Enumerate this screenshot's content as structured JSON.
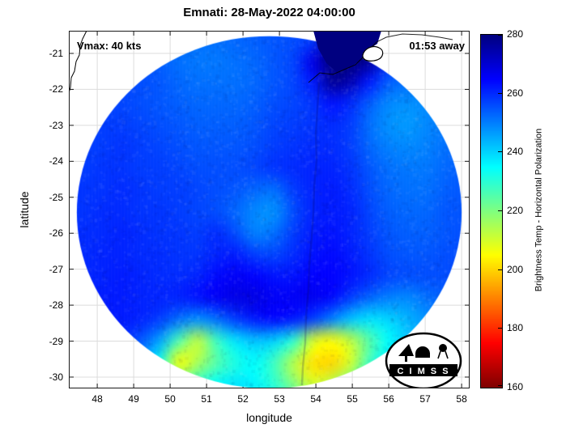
{
  "figure": {
    "title": "Emnati: 28-May-2022 04:00:00",
    "annotations": {
      "vmax": "Vmax: 40 kts",
      "eta": "01:53 away"
    },
    "xlabel": "longitude",
    "ylabel": "latitude",
    "logo_text": "C I M S S"
  },
  "chart_data": {
    "type": "heatmap",
    "title": "Emnati: 28-May-2022 04:00:00",
    "xlabel": "longitude",
    "ylabel": "latitude",
    "x_ticks": [
      48,
      49,
      50,
      51,
      52,
      53,
      54,
      55,
      56,
      57,
      58
    ],
    "y_ticks": [
      -21,
      -22,
      -23,
      -24,
      -25,
      -26,
      -27,
      -28,
      -29,
      -30
    ],
    "xlim": [
      47.22,
      58.22
    ],
    "ylim": [
      -30.32,
      -20.37
    ],
    "grid_on": true,
    "colorbar": {
      "label": "Brightness Temp - Horizontal Polarization",
      "ticks": [
        160,
        180,
        200,
        220,
        240,
        260,
        280
      ],
      "range": [
        160,
        280
      ],
      "colormap": "jet reversed: 160 K = dark red, 200 K = yellow, 220 K = green, 240 K = cyan, 260 K = blue, 280 K = dark navy"
    },
    "swath": {
      "center_lon": 52.72,
      "center_lat": -25.42,
      "radius_lon_deg": 5.28,
      "radius_lat_deg": 4.9
    },
    "features": [
      {
        "name": "no-data-wedge",
        "desc": "dark navy wedge (~278-280 K) at top right, lon 54-56.5, lat -20.5 to -22.5, from adjacent swath edge"
      },
      {
        "name": "convective-band",
        "desc": "warm cyan-green-yellow arc along the south edge, lat -28.5 to -30.5, minima ~200 K near lon 50.5 and lon 54-55"
      },
      {
        "name": "center-light-spot",
        "desc": "lighter blue spot near storm center, lon ~52.4, lat ~-25.5, ~248 K"
      },
      {
        "name": "coastline",
        "desc": "Madagascar east coast visible at upper left; small island outline (Reunion) near lon 55.4, lat -21"
      }
    ],
    "grid": {
      "lon_start": 47.6,
      "lon_step": 0.525,
      "lat_start": -20.6,
      "lat_step": -0.6,
      "units": "K",
      "values": [
        [
          254,
          255,
          256,
          255,
          254,
          253,
          252,
          252,
          253,
          254,
          255,
          256,
          258,
          276,
          279,
          278,
          262,
          256,
          255,
          254,
          254
        ],
        [
          255,
          256,
          256,
          255,
          254,
          252,
          251,
          251,
          252,
          253,
          255,
          257,
          268,
          279,
          280,
          277,
          260,
          255,
          254,
          253,
          253
        ],
        [
          256,
          256,
          257,
          256,
          255,
          253,
          252,
          252,
          252,
          253,
          255,
          257,
          262,
          277,
          274,
          262,
          254,
          252,
          251,
          252,
          252
        ],
        [
          257,
          257,
          257,
          256,
          255,
          254,
          253,
          253,
          253,
          254,
          256,
          257,
          259,
          263,
          260,
          254,
          249,
          248,
          249,
          251,
          252
        ],
        [
          257,
          258,
          258,
          257,
          256,
          255,
          254,
          254,
          254,
          255,
          257,
          258,
          259,
          260,
          258,
          252,
          248,
          247,
          249,
          251,
          252
        ],
        [
          258,
          258,
          259,
          258,
          257,
          256,
          255,
          255,
          255,
          256,
          258,
          259,
          260,
          260,
          258,
          253,
          250,
          249,
          250,
          252,
          253
        ],
        [
          258,
          259,
          259,
          258,
          258,
          257,
          256,
          256,
          256,
          257,
          259,
          260,
          261,
          261,
          259,
          255,
          252,
          251,
          251,
          253,
          254
        ],
        [
          259,
          259,
          260,
          259,
          258,
          258,
          257,
          256,
          255,
          253,
          252,
          258,
          261,
          262,
          260,
          256,
          253,
          252,
          252,
          254,
          255
        ],
        [
          259,
          260,
          260,
          259,
          259,
          258,
          257,
          256,
          253,
          249,
          248,
          256,
          261,
          262,
          261,
          257,
          254,
          253,
          253,
          255,
          255
        ],
        [
          260,
          260,
          261,
          260,
          259,
          259,
          258,
          260,
          256,
          250,
          252,
          258,
          262,
          263,
          261,
          258,
          255,
          254,
          254,
          255,
          256
        ],
        [
          260,
          261,
          261,
          260,
          260,
          259,
          259,
          261,
          262,
          258,
          257,
          260,
          263,
          264,
          262,
          259,
          256,
          255,
          255,
          256,
          256
        ],
        [
          261,
          261,
          262,
          261,
          260,
          260,
          261,
          264,
          266,
          265,
          263,
          263,
          265,
          265,
          263,
          260,
          257,
          256,
          256,
          256,
          257
        ],
        [
          261,
          262,
          262,
          261,
          261,
          261,
          263,
          266,
          268,
          268,
          266,
          266,
          267,
          264,
          258,
          253,
          250,
          249,
          252,
          254,
          255
        ],
        [
          261,
          262,
          262,
          261,
          258,
          252,
          248,
          252,
          258,
          262,
          264,
          262,
          258,
          250,
          242,
          238,
          240,
          244,
          248,
          252,
          254
        ],
        [
          260,
          261,
          260,
          255,
          246,
          226,
          212,
          228,
          238,
          242,
          240,
          230,
          210,
          205,
          212,
          225,
          235,
          242,
          246,
          250,
          253
        ],
        [
          259,
          260,
          258,
          250,
          234,
          206,
          215,
          225,
          232,
          235,
          228,
          214,
          202,
          200,
          210,
          228,
          238,
          244,
          248,
          251,
          253
        ],
        [
          258,
          259,
          257,
          250,
          240,
          228,
          230,
          235,
          238,
          236,
          230,
          220,
          210,
          214,
          224,
          236,
          242,
          246,
          249,
          251,
          252
        ],
        [
          257,
          258,
          256,
          250,
          244,
          238,
          236,
          238,
          240,
          239,
          236,
          230,
          226,
          228,
          234,
          240,
          244,
          246,
          248,
          250,
          251
        ]
      ]
    }
  }
}
